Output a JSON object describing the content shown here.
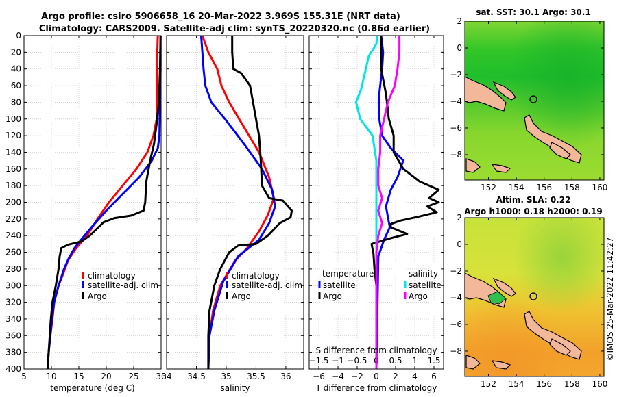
{
  "header": {
    "title_line1": "Argo profile: csiro 5906658_16 20-Mar-2022 3.969S 155.31E (NRT data)",
    "title_line2": "Climatology: CARS2009. Satellite-adj clim: synTS_20220320.nc (0.86d earlier)"
  },
  "copyright": "©IMOS 25-Mar-2022 11:42:27",
  "colors": {
    "argo": "#000000",
    "climatology": "#ff0000",
    "satellite_adj": "#0000ff",
    "t_sat": "#0000ff",
    "s_sat": "#00e5e5",
    "s_argo": "#ff00ff"
  },
  "chart_data": [
    {
      "id": "temp",
      "type": "line",
      "xlabel": "temperature (deg C)",
      "xlim": [
        5,
        30
      ],
      "xticks": [
        5,
        10,
        15,
        20,
        25,
        30
      ],
      "ylim": [
        0,
        400
      ],
      "yticks": [
        0,
        20,
        40,
        60,
        80,
        100,
        120,
        140,
        160,
        180,
        200,
        220,
        240,
        260,
        280,
        300,
        320,
        340,
        360,
        380,
        400
      ],
      "grid": true,
      "legend": {
        "items": [
          "climatology",
          "satellite-adj. clim",
          "Argo"
        ]
      },
      "series": [
        {
          "name": "climatology",
          "color": "#ff0000",
          "points": [
            [
              29.4,
              0
            ],
            [
              29.3,
              20
            ],
            [
              29.2,
              60
            ],
            [
              29.2,
              100
            ],
            [
              28.6,
              120
            ],
            [
              27.5,
              140
            ],
            [
              25.5,
              160
            ],
            [
              23,
              180
            ],
            [
              20.5,
              200
            ],
            [
              18.4,
              220
            ],
            [
              16.5,
              240
            ],
            [
              14.5,
              255
            ],
            [
              13,
              270
            ],
            [
              12.2,
              285
            ],
            [
              11.3,
              300
            ],
            [
              10.5,
              320
            ],
            [
              10.2,
              340
            ],
            [
              9.8,
              360
            ],
            [
              9.5,
              380
            ],
            [
              9.3,
              400
            ]
          ]
        },
        {
          "name": "satellite-adj. clim",
          "color": "#0000ff",
          "points": [
            [
              29.9,
              0
            ],
            [
              29.9,
              40
            ],
            [
              29.8,
              80
            ],
            [
              29.7,
              120
            ],
            [
              29.4,
              135
            ],
            [
              28.3,
              150
            ],
            [
              26,
              170
            ],
            [
              23,
              190
            ],
            [
              20,
              210
            ],
            [
              17.3,
              230
            ],
            [
              15.4,
              245
            ],
            [
              14.2,
              255
            ],
            [
              13.1,
              268
            ],
            [
              12.3,
              280
            ],
            [
              11.3,
              300
            ],
            [
              10.5,
              320
            ],
            [
              10.1,
              340
            ],
            [
              9.8,
              360
            ],
            [
              9.5,
              380
            ],
            [
              9.3,
              400
            ]
          ]
        },
        {
          "name": "Argo",
          "color": "#000000",
          "points": [
            [
              29.9,
              0
            ],
            [
              29.8,
              40
            ],
            [
              29.6,
              80
            ],
            [
              29.2,
              105
            ],
            [
              28.7,
              130
            ],
            [
              28,
              150
            ],
            [
              27.3,
              175
            ],
            [
              27.1,
              200
            ],
            [
              26.8,
              210
            ],
            [
              24.5,
              216
            ],
            [
              21.5,
              219
            ],
            [
              19.5,
              224
            ],
            [
              17,
              240
            ],
            [
              15.5,
              247
            ],
            [
              13,
              251
            ],
            [
              11.8,
              255
            ],
            [
              11.5,
              265
            ],
            [
              11.3,
              280
            ],
            [
              10.8,
              300
            ],
            [
              10.2,
              320
            ],
            [
              9.9,
              340
            ],
            [
              9.7,
              360
            ],
            [
              9.5,
              380
            ],
            [
              9.3,
              400
            ]
          ]
        }
      ]
    },
    {
      "id": "salinity",
      "type": "line",
      "xlabel": "salinity",
      "xlim": [
        34,
        36.3
      ],
      "xticks": [
        34,
        34.5,
        35,
        35.5,
        36
      ],
      "ylim": [
        0,
        400
      ],
      "grid": true,
      "legend": {
        "items": [
          "climatology",
          "satellite-adj. clim",
          "Argo"
        ]
      },
      "series": [
        {
          "name": "climatology",
          "color": "#ff0000",
          "points": [
            [
              34.6,
              0
            ],
            [
              34.7,
              20
            ],
            [
              34.85,
              40
            ],
            [
              34.92,
              60
            ],
            [
              35.05,
              80
            ],
            [
              35.3,
              110
            ],
            [
              35.55,
              140
            ],
            [
              35.72,
              170
            ],
            [
              35.8,
              195
            ],
            [
              35.7,
              215
            ],
            [
              35.55,
              235
            ],
            [
              35.35,
              255
            ],
            [
              35.15,
              270
            ],
            [
              34.9,
              300
            ],
            [
              34.78,
              330
            ],
            [
              34.72,
              360
            ],
            [
              34.7,
              400
            ]
          ]
        },
        {
          "name": "satellite-adj. clim",
          "color": "#0000ff",
          "points": [
            [
              34.58,
              0
            ],
            [
              34.6,
              20
            ],
            [
              34.62,
              40
            ],
            [
              34.65,
              60
            ],
            [
              34.75,
              80
            ],
            [
              34.98,
              100
            ],
            [
              35.3,
              130
            ],
            [
              35.6,
              160
            ],
            [
              35.77,
              185
            ],
            [
              35.82,
              205
            ],
            [
              35.72,
              225
            ],
            [
              35.55,
              245
            ],
            [
              35.2,
              265
            ],
            [
              34.95,
              295
            ],
            [
              34.8,
              330
            ],
            [
              34.72,
              360
            ],
            [
              34.7,
              400
            ]
          ]
        },
        {
          "name": "Argo",
          "color": "#000000",
          "points": [
            [
              35.1,
              0
            ],
            [
              35.1,
              20
            ],
            [
              35.12,
              40
            ],
            [
              35.25,
              45
            ],
            [
              35.4,
              60
            ],
            [
              35.45,
              80
            ],
            [
              35.5,
              100
            ],
            [
              35.55,
              120
            ],
            [
              35.58,
              150
            ],
            [
              35.6,
              180
            ],
            [
              35.72,
              195
            ],
            [
              35.95,
              198
            ],
            [
              36.1,
              210
            ],
            [
              36.08,
              218
            ],
            [
              35.9,
              225
            ],
            [
              35.7,
              240
            ],
            [
              35.5,
              250
            ],
            [
              35.2,
              252
            ],
            [
              35.05,
              260
            ],
            [
              34.9,
              280
            ],
            [
              34.8,
              300
            ],
            [
              34.72,
              330
            ],
            [
              34.7,
              360
            ],
            [
              34.7,
              400
            ]
          ]
        }
      ]
    },
    {
      "id": "difference",
      "type": "line",
      "xlabel": "T difference from climatology",
      "xlabel_top": "S difference from climatology",
      "xlim": [
        -7,
        7
      ],
      "xticks": [
        -6,
        -4,
        -2,
        0,
        2,
        4,
        6
      ],
      "xticks_top": [
        -1.5,
        -1,
        -0.5,
        0,
        0.5,
        1,
        1.5
      ],
      "ylim": [
        0,
        400
      ],
      "grid": true,
      "legend": {
        "temperature_heading": "temperature",
        "salinity_heading": "salinity",
        "t_items": [
          "satellite",
          "Argo"
        ],
        "s_items": [
          "satellite",
          "Argo"
        ]
      },
      "series": [
        {
          "name": "T satellite",
          "color": "#0000ff",
          "points": [
            [
              0.5,
              0
            ],
            [
              0.7,
              20
            ],
            [
              0.6,
              40
            ],
            [
              0.3,
              70
            ],
            [
              0.3,
              100
            ],
            [
              0.6,
              120
            ],
            [
              1.5,
              135
            ],
            [
              2.8,
              150
            ],
            [
              2.2,
              170
            ],
            [
              1.5,
              185
            ],
            [
              1.0,
              205
            ],
            [
              1.4,
              230
            ],
            [
              0.8,
              245
            ],
            [
              0.5,
              255
            ],
            [
              0.2,
              265
            ],
            [
              0,
              400
            ]
          ]
        },
        {
          "name": "T Argo",
          "color": "#000000",
          "points": [
            [
              0.5,
              0
            ],
            [
              0.5,
              40
            ],
            [
              1.0,
              70
            ],
            [
              1.3,
              100
            ],
            [
              1.8,
              120
            ],
            [
              1.8,
              140
            ],
            [
              2.8,
              160
            ],
            [
              4.5,
              175
            ],
            [
              6.5,
              185
            ],
            [
              5.5,
              195
            ],
            [
              6.5,
              200
            ],
            [
              5.3,
              205
            ],
            [
              6.3,
              212
            ],
            [
              4.5,
              217
            ],
            [
              2.5,
              222
            ],
            [
              1.5,
              226
            ],
            [
              1.5,
              230
            ],
            [
              3.2,
              238
            ],
            [
              1.5,
              243
            ],
            [
              -0.5,
              250
            ],
            [
              -0.3,
              262
            ],
            [
              -0.2,
              280
            ],
            [
              0,
              300
            ],
            [
              0,
              400
            ]
          ]
        },
        {
          "name": "S satellite",
          "color": "#00e5e5",
          "points": [
            [
              0.02,
              0
            ],
            [
              0,
              10
            ],
            [
              -0.2,
              25
            ],
            [
              -0.3,
              45
            ],
            [
              -0.4,
              65
            ],
            [
              -0.53,
              80
            ],
            [
              -0.42,
              100
            ],
            [
              -0.1,
              120
            ],
            [
              0,
              150
            ],
            [
              0,
              400
            ]
          ]
        },
        {
          "name": "S Argo",
          "color": "#ff00ff",
          "points": [
            [
              0.6,
              0
            ],
            [
              0.6,
              20
            ],
            [
              0.55,
              40
            ],
            [
              0.48,
              60
            ],
            [
              0.3,
              80
            ],
            [
              0.2,
              100
            ],
            [
              0.1,
              120
            ],
            [
              0.1,
              140
            ],
            [
              0.05,
              160
            ],
            [
              0.05,
              180
            ],
            [
              0.15,
              195
            ],
            [
              0.05,
              210
            ],
            [
              0.15,
              225
            ],
            [
              0.05,
              240
            ],
            [
              0,
              260
            ],
            [
              0,
              300
            ],
            [
              0,
              400
            ]
          ]
        }
      ]
    },
    {
      "id": "map_sst",
      "type": "heatmap",
      "title": "sat. SST: 30.1 Argo: 30.1",
      "xticks": [
        152,
        154,
        156,
        158,
        160
      ],
      "yticks": [
        2,
        0,
        -2,
        -4,
        -6,
        -8
      ],
      "xlim": [
        150.3,
        160.3
      ],
      "ylim": [
        -9.9,
        2
      ],
      "argo_position": [
        155.31,
        -3.969
      ]
    },
    {
      "id": "map_sla",
      "type": "heatmap",
      "title_line1": "Altim. SLA: 0.22",
      "title_line2": "Argo h1000: 0.18 h2000: 0.19",
      "xticks": [
        152,
        154,
        156,
        158,
        160
      ],
      "yticks": [
        2,
        0,
        -2,
        -4,
        -6,
        -8
      ],
      "xlim": [
        150.3,
        160.3
      ],
      "ylim": [
        -9.9,
        2
      ],
      "argo_position": [
        155.31,
        -3.969
      ]
    }
  ]
}
